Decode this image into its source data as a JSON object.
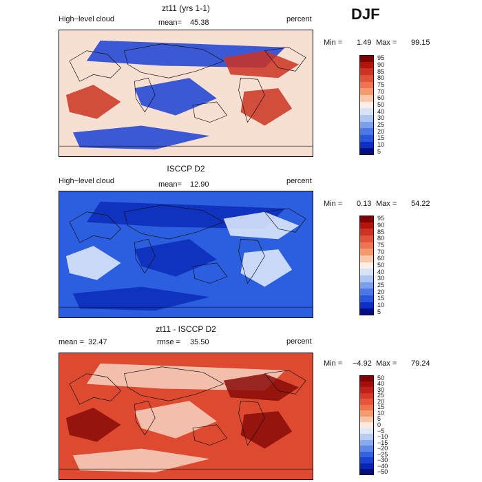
{
  "season": "DJF",
  "panels": [
    {
      "title": "zt11 (yrs 1-1)",
      "left_label": "High−level cloud",
      "stat1_label": "mean=",
      "stat1_value": "45.38",
      "right_label": "percent",
      "min_label": "Min =",
      "min_value": "1.49",
      "max_label": "Max =",
      "max_value": "99.15",
      "colorbar_levels": [
        "95",
        "90",
        "85",
        "80",
        "75",
        "70",
        "60",
        "50",
        "40",
        "30",
        "25",
        "20",
        "15",
        "10",
        "5"
      ],
      "colorbar_colors": [
        "#800000",
        "#b3140e",
        "#cd3322",
        "#e0533b",
        "#ee7352",
        "#f5996f",
        "#fbc7a9",
        "#fcefe6",
        "#d8e3f7",
        "#adc5f1",
        "#7aa0ec",
        "#4b78e6",
        "#2a56dc",
        "#0d2fc5",
        "#000e88"
      ],
      "field_colors": {
        "low": "#1a3fd6",
        "mid": "#f7e0d2",
        "high": "#cc3322"
      }
    },
    {
      "title": "ISCCP D2",
      "left_label": "High−level cloud",
      "stat1_label": "mean=",
      "stat1_value": "12.90",
      "right_label": "percent",
      "min_label": "Min =",
      "min_value": "0.13",
      "max_label": "Max =",
      "max_value": "54.22",
      "colorbar_levels": [
        "95",
        "90",
        "85",
        "80",
        "75",
        "70",
        "60",
        "50",
        "40",
        "30",
        "25",
        "20",
        "15",
        "10",
        "5"
      ],
      "colorbar_colors": [
        "#800000",
        "#b3140e",
        "#cd3322",
        "#e0533b",
        "#ee7352",
        "#f5996f",
        "#fbc7a9",
        "#fcefe6",
        "#d8e3f7",
        "#adc5f1",
        "#7aa0ec",
        "#4b78e6",
        "#2a56dc",
        "#0d2fc5",
        "#000e88"
      ],
      "field_colors": {
        "low": "#0a2bb8",
        "mid": "#2c5ee0",
        "high": "#e6eefc"
      }
    },
    {
      "title": "zt11 - ISCCP D2",
      "left_label": "",
      "stat1_label": "mean =",
      "stat1_value": "32.47",
      "stat2_label": "rmse =",
      "stat2_value": "35.50",
      "right_label": "percent",
      "min_label": "Min =",
      "min_value": "−4.92",
      "max_label": "Max =",
      "max_value": "79.24",
      "colorbar_levels": [
        "50",
        "40",
        "30",
        "25",
        "20",
        "15",
        "10",
        "5",
        "0",
        "−5",
        "−10",
        "−15",
        "−20",
        "−25",
        "−30",
        "−40",
        "−50"
      ],
      "colorbar_colors": [
        "#800000",
        "#a50f0a",
        "#c0201a",
        "#d6392a",
        "#e6553a",
        "#f0734e",
        "#f79a70",
        "#fbc3a6",
        "#fde9e0",
        "#dfe8f8",
        "#b7ccf2",
        "#8aaaee",
        "#5d87e8",
        "#3563e0",
        "#1a42d2",
        "#0a25b2",
        "#000e80"
      ],
      "field_colors": {
        "low": "#f7d4c3",
        "mid": "#dd4a30",
        "high": "#8a0a08"
      }
    }
  ]
}
